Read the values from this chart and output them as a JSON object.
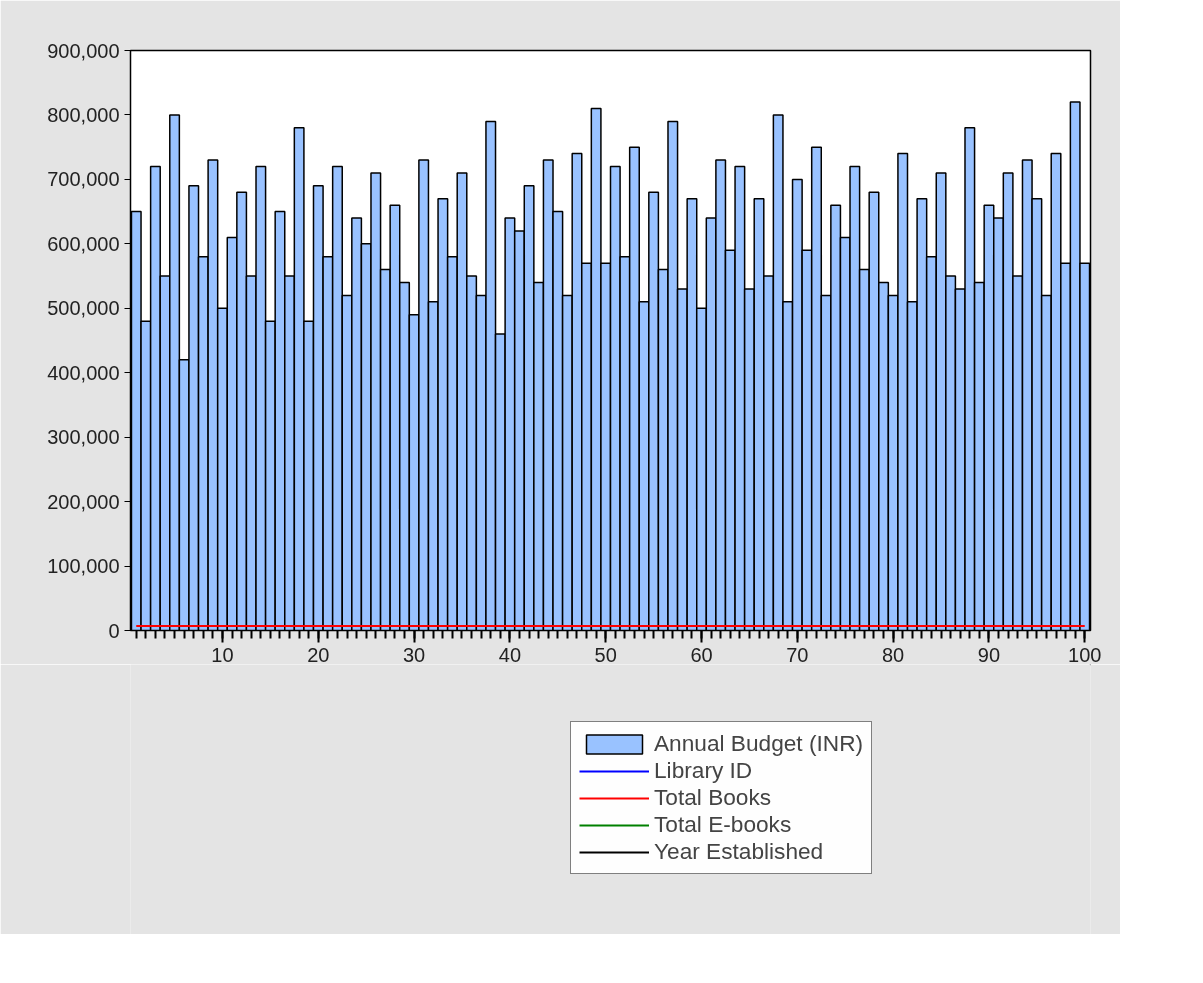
{
  "chart_data": {
    "type": "bar",
    "x": [
      1,
      2,
      3,
      4,
      5,
      6,
      7,
      8,
      9,
      10,
      11,
      12,
      13,
      14,
      15,
      16,
      17,
      18,
      19,
      20,
      21,
      22,
      23,
      24,
      25,
      26,
      27,
      28,
      29,
      30,
      31,
      32,
      33,
      34,
      35,
      36,
      37,
      38,
      39,
      40,
      41,
      42,
      43,
      44,
      45,
      46,
      47,
      48,
      49,
      50,
      51,
      52,
      53,
      54,
      55,
      56,
      57,
      58,
      59,
      60,
      61,
      62,
      63,
      64,
      65,
      66,
      67,
      68,
      69,
      70,
      71,
      72,
      73,
      74,
      75,
      76,
      77,
      78,
      79,
      80,
      81,
      82,
      83,
      84,
      85,
      86,
      87,
      88,
      89,
      90,
      91,
      92,
      93,
      94,
      95,
      96,
      97,
      98,
      99,
      100
    ],
    "xlim": [
      0.4,
      100.6
    ],
    "xticks": [
      10,
      20,
      30,
      40,
      50,
      60,
      70,
      80,
      90,
      100
    ],
    "ylim": [
      0,
      900000
    ],
    "yticks": [
      {
        "value": 0,
        "label": "0"
      },
      {
        "value": 100000,
        "label": "100,000"
      },
      {
        "value": 200000,
        "label": "200,000"
      },
      {
        "value": 300000,
        "label": "300,000"
      },
      {
        "value": 400000,
        "label": "400,000"
      },
      {
        "value": 500000,
        "label": "500,000"
      },
      {
        "value": 600000,
        "label": "600,000"
      },
      {
        "value": 700000,
        "label": "700,000"
      },
      {
        "value": 800000,
        "label": "800,000"
      },
      {
        "value": 900000,
        "label": "900,000"
      }
    ],
    "grid": false,
    "legend": "bottom",
    "series": [
      {
        "name": "Annual Budget (INR)",
        "color": "#99c2ff",
        "values": [
          650000,
          480000,
          720000,
          550000,
          800000,
          420000,
          690000,
          580000,
          730000,
          500000,
          610000,
          680000,
          550000,
          720000,
          480000,
          650000,
          550000,
          780000,
          480000,
          690000,
          580000,
          720000,
          520000,
          640000,
          600000,
          710000,
          560000,
          660000,
          540000,
          490000,
          730000,
          510000,
          670000,
          580000,
          710000,
          550000,
          520000,
          790000,
          460000,
          640000,
          620000,
          690000,
          540000,
          730000,
          650000,
          520000,
          740000,
          570000,
          810000,
          570000,
          720000,
          580000,
          750000,
          510000,
          680000,
          560000,
          790000,
          530000,
          670000,
          500000,
          640000,
          730000,
          590000,
          720000,
          530000,
          670000,
          550000,
          800000,
          510000,
          700000,
          590000,
          750000,
          520000,
          660000,
          610000,
          720000,
          560000,
          680000,
          540000,
          520000,
          740000,
          510000,
          670000,
          580000,
          710000,
          550000,
          530000,
          780000,
          540000,
          660000,
          640000,
          710000,
          550000,
          730000,
          670000,
          520000,
          740000,
          570000,
          820000,
          570000
        ]
      },
      {
        "name": "Library ID",
        "type": "line",
        "color": "#0000ff",
        "values": [
          null,
          null,
          null,
          null,
          null,
          null,
          null,
          null,
          null,
          null,
          null,
          null,
          null,
          null,
          null,
          null,
          null,
          null,
          null,
          null,
          null,
          null,
          null,
          null,
          null,
          null,
          null,
          null,
          null,
          null,
          null,
          null,
          null,
          null,
          null,
          null,
          null,
          null,
          null,
          null,
          null,
          null,
          null,
          null,
          null,
          null,
          null,
          null,
          null,
          null,
          null,
          null,
          null,
          null,
          null,
          null,
          null,
          null,
          null,
          null,
          null,
          null,
          null,
          null,
          null,
          null,
          null,
          null,
          null,
          null,
          null,
          null,
          null,
          null,
          null,
          null,
          null,
          null,
          null,
          null,
          null,
          null,
          null,
          null,
          null,
          null,
          null,
          null,
          null,
          null,
          null,
          null,
          null,
          null,
          null,
          null,
          null,
          null,
          null,
          null
        ]
      },
      {
        "name": "Total Books",
        "type": "line",
        "color": "#ff0000",
        "values": [
          7000,
          7000,
          7000,
          7000,
          7000,
          7000,
          7000,
          7000,
          7000,
          7000,
          7000,
          7000,
          7000,
          7000,
          7000,
          7000,
          7000,
          7000,
          7000,
          7000,
          7000,
          7000,
          7000,
          7000,
          7000,
          7000,
          7000,
          7000,
          7000,
          7000,
          7000,
          7000,
          7000,
          7000,
          7000,
          7000,
          7000,
          7000,
          7000,
          7000,
          7000,
          7000,
          7000,
          7000,
          7000,
          7000,
          7000,
          7000,
          7000,
          7000,
          7000,
          7000,
          7000,
          7000,
          7000,
          7000,
          7000,
          7000,
          7000,
          7000,
          7000,
          7000,
          7000,
          7000,
          7000,
          7000,
          7000,
          7000,
          7000,
          7000,
          7000,
          7000,
          7000,
          7000,
          7000,
          7000,
          7000,
          7000,
          7000,
          7000,
          7000,
          7000,
          7000,
          7000,
          7000,
          7000,
          7000,
          7000,
          7000,
          7000,
          7000,
          7000,
          7000,
          7000,
          7000,
          7000,
          7000,
          7000,
          7000,
          7000
        ]
      },
      {
        "name": "Total E-books",
        "type": "line",
        "color": "#008000",
        "values": [
          null,
          null,
          null,
          null,
          null,
          null,
          null,
          null,
          null,
          null,
          null,
          null,
          null,
          null,
          null,
          null,
          null,
          null,
          null,
          null,
          null,
          null,
          null,
          null,
          null,
          null,
          null,
          null,
          null,
          null,
          null,
          null,
          null,
          null,
          null,
          null,
          null,
          null,
          null,
          null,
          null,
          null,
          null,
          null,
          null,
          null,
          null,
          null,
          null,
          null,
          null,
          null,
          null,
          null,
          null,
          null,
          null,
          null,
          null,
          null,
          null,
          null,
          null,
          null,
          null,
          null,
          null,
          null,
          null,
          null,
          null,
          null,
          null,
          null,
          null,
          null,
          null,
          null,
          null,
          null,
          null,
          null,
          null,
          null,
          null,
          null,
          null,
          null,
          null,
          null,
          null,
          null,
          null,
          null,
          null,
          null,
          null,
          null,
          null,
          null
        ]
      },
      {
        "name": "Year Established",
        "type": "line",
        "color": "#000000",
        "values": [
          null,
          null,
          null,
          null,
          null,
          null,
          null,
          null,
          null,
          null,
          null,
          null,
          null,
          null,
          null,
          null,
          null,
          null,
          null,
          null,
          null,
          null,
          null,
          null,
          null,
          null,
          null,
          null,
          null,
          null,
          null,
          null,
          null,
          null,
          null,
          null,
          null,
          null,
          null,
          null,
          null,
          null,
          null,
          null,
          null,
          null,
          null,
          null,
          null,
          null,
          null,
          null,
          null,
          null,
          null,
          null,
          null,
          null,
          null,
          null,
          null,
          null,
          null,
          null,
          null,
          null,
          null,
          null,
          null,
          null,
          null,
          null,
          null,
          null,
          null,
          null,
          null,
          null,
          null,
          null,
          null,
          null,
          null,
          null,
          null,
          null,
          null,
          null,
          null,
          null,
          null,
          null,
          null,
          null,
          null,
          null,
          null,
          null,
          null,
          null
        ]
      }
    ]
  }
}
